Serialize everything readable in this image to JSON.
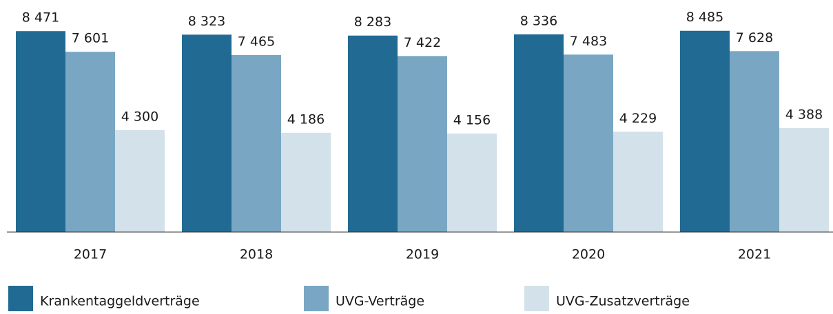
{
  "chart_data": {
    "type": "bar",
    "categories": [
      "2017",
      "2018",
      "2019",
      "2020",
      "2021"
    ],
    "series": [
      {
        "name": "Krankentaggeldverträge",
        "color": "#216a93",
        "values": [
          8471,
          8323,
          8283,
          8336,
          8485
        ],
        "value_labels": [
          "8 471",
          "8 323",
          "8 283",
          "8 336",
          "8 485"
        ]
      },
      {
        "name": "UVG-Verträge",
        "color": "#79a7c3",
        "values": [
          7601,
          7465,
          7422,
          7483,
          7628
        ],
        "value_labels": [
          "7 601",
          "7 465",
          "7 422",
          "7 483",
          "7 628"
        ]
      },
      {
        "name": "UVG-Zusatzverträge",
        "color": "#d3e1ea",
        "values": [
          4300,
          4186,
          4156,
          4229,
          4388
        ],
        "value_labels": [
          "4 300",
          "4 186",
          "4 156",
          "4 229",
          "4 388"
        ]
      }
    ],
    "ylim": [
      0,
      9000
    ],
    "legend": "bottom"
  }
}
